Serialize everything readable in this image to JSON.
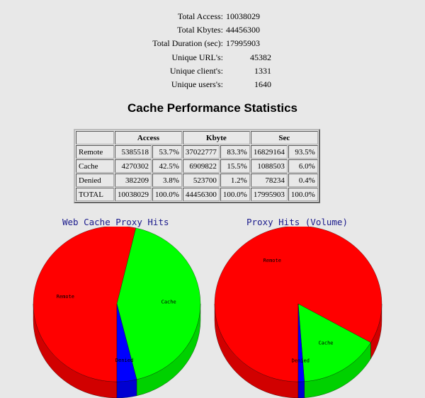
{
  "summary": [
    {
      "label": "Total Access:",
      "value": "10038029"
    },
    {
      "label": "Total Kbytes:",
      "value": "44456300"
    },
    {
      "label": "Total Duration (sec):",
      "value": "17995903"
    },
    {
      "label": "Unique URL's:",
      "value": "45382"
    },
    {
      "label": "Unique client's:",
      "value": "1331"
    },
    {
      "label": "Unique users's:",
      "value": "1640"
    }
  ],
  "table": {
    "title": "Cache Performance Statistics",
    "headers": [
      "Access",
      "Kbyte",
      "Sec"
    ],
    "rows": [
      {
        "label": "Remote",
        "cells": [
          "5385518",
          "53.7%",
          "37022777",
          "83.3%",
          "16829164",
          "93.5%"
        ]
      },
      {
        "label": "Cache",
        "cells": [
          "4270302",
          "42.5%",
          "6909822",
          "15.5%",
          "1088503",
          "6.0%"
        ]
      },
      {
        "label": "Denied",
        "cells": [
          "382209",
          "3.8%",
          "523700",
          "1.2%",
          "78234",
          "0.4%"
        ]
      },
      {
        "label": "TOTAL",
        "cells": [
          "10038029",
          "100.0%",
          "44456300",
          "100.0%",
          "17995903",
          "100.0%"
        ]
      }
    ]
  },
  "chart_data": [
    {
      "type": "pie",
      "title": "Web Cache Proxy Hits",
      "categories": [
        "Remote",
        "Cache",
        "Denied"
      ],
      "values": [
        5385518,
        4270302,
        382209
      ],
      "colors": [
        "#ff0000",
        "#00ff00",
        "#0000ff"
      ]
    },
    {
      "type": "pie",
      "title": "Proxy Hits (Volume)",
      "categories": [
        "Remote",
        "Cache",
        "Denied"
      ],
      "values": [
        37022777,
        6909822,
        523700
      ],
      "colors": [
        "#ff0000",
        "#00ff00",
        "#0000ff"
      ]
    }
  ]
}
